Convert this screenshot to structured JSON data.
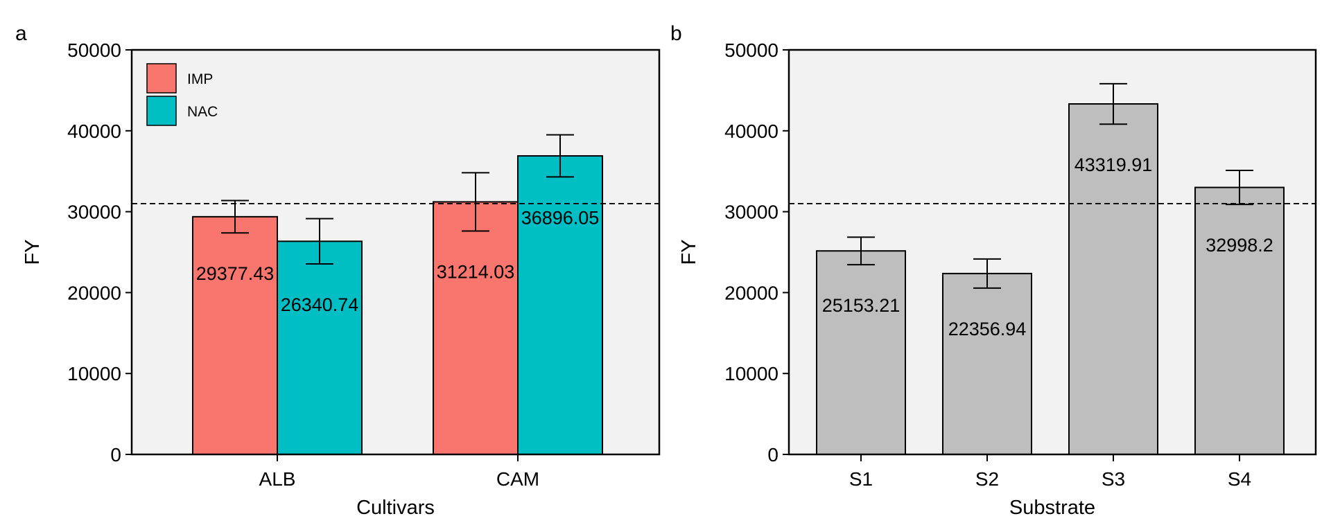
{
  "chart_data": [
    {
      "type": "bar",
      "panel": "a",
      "xlabel": "Cultivars",
      "ylabel": "FY",
      "ylim": [
        0,
        50000
      ],
      "yticks": [
        0,
        10000,
        20000,
        30000,
        40000,
        50000
      ],
      "categories": [
        "ALB",
        "CAM"
      ],
      "series": [
        {
          "name": "IMP",
          "color": "#F8766D",
          "values": [
            29377.43,
            31214.03
          ],
          "errors": [
            2000,
            3600
          ]
        },
        {
          "name": "NAC",
          "color": "#00BFC4",
          "values": [
            26340.74,
            36896.05
          ],
          "errors": [
            2800,
            2600
          ]
        }
      ],
      "value_labels": [
        [
          "29377.43",
          "31214.03"
        ],
        [
          "26340.74",
          "36896.05"
        ]
      ],
      "reference_line": 31000,
      "legend": "top-left",
      "background": "#F2F2F2"
    },
    {
      "type": "bar",
      "panel": "b",
      "xlabel": "Substrate",
      "ylabel": "FY",
      "ylim": [
        0,
        50000
      ],
      "yticks": [
        0,
        10000,
        20000,
        30000,
        40000,
        50000
      ],
      "categories": [
        "S1",
        "S2",
        "S3",
        "S4"
      ],
      "series": [
        {
          "color": "#BEBEBE",
          "values": [
            25153.21,
            22356.94,
            43319.91,
            32998.2
          ],
          "errors": [
            1700,
            1800,
            2500,
            2100
          ]
        }
      ],
      "value_labels": [
        [
          "25153.21",
          "22356.94",
          "43319.91",
          "32998.2"
        ]
      ],
      "reference_line": 31000,
      "background": "#F2F2F2"
    }
  ]
}
